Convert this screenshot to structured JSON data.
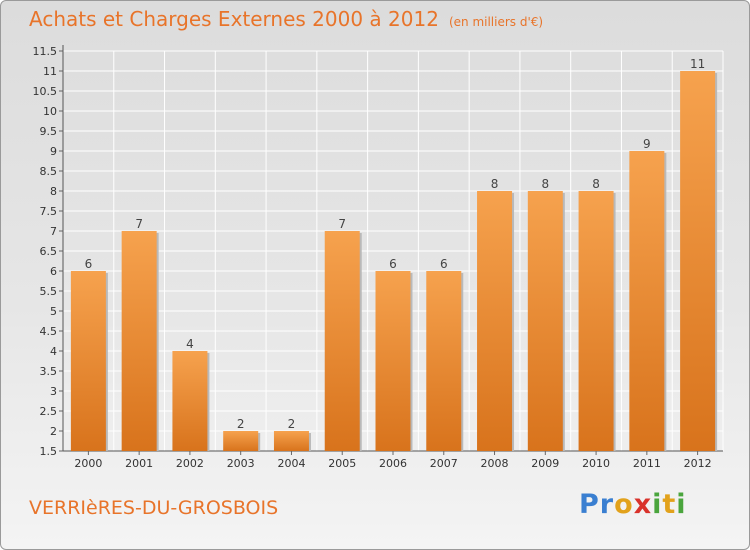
{
  "header": {
    "title": "Achats et Charges Externes 2000 à 2012",
    "unit": "(en milliers d'€)"
  },
  "footer": {
    "place": "VERRIèRES-DU-GROSBOIS",
    "logo_letters": [
      {
        "ch": "P",
        "color": "#3a7fd1"
      },
      {
        "ch": "r",
        "color": "#3a7fd1"
      },
      {
        "ch": "o",
        "color": "#e2a21c"
      },
      {
        "ch": "x",
        "color": "#d9322b"
      },
      {
        "ch": "i",
        "color": "#4aa53d"
      },
      {
        "ch": "t",
        "color": "#e2a21c"
      },
      {
        "ch": "i",
        "color": "#4aa53d"
      }
    ]
  },
  "chart_data": {
    "type": "bar",
    "categories": [
      "2000",
      "2001",
      "2002",
      "2003",
      "2004",
      "2005",
      "2006",
      "2007",
      "2008",
      "2009",
      "2010",
      "2011",
      "2012"
    ],
    "values": [
      6,
      7,
      4,
      2,
      2,
      7,
      6,
      6,
      8,
      8,
      8,
      9,
      11
    ],
    "ylim": [
      1.5,
      11.5
    ],
    "yticks": [
      "1.5",
      "2",
      "2.5",
      "3",
      "3.5",
      "4",
      "4.5",
      "5",
      "5.5",
      "6",
      "6.5",
      "7",
      "7.5",
      "8",
      "8.5",
      "9",
      "9.5",
      "10",
      "10.5",
      "11",
      "11.5"
    ],
    "grid": true,
    "colors": {
      "bar_top": "#f6a24e",
      "bar_bottom": "#d8731c",
      "grid": "#ffffff"
    }
  }
}
